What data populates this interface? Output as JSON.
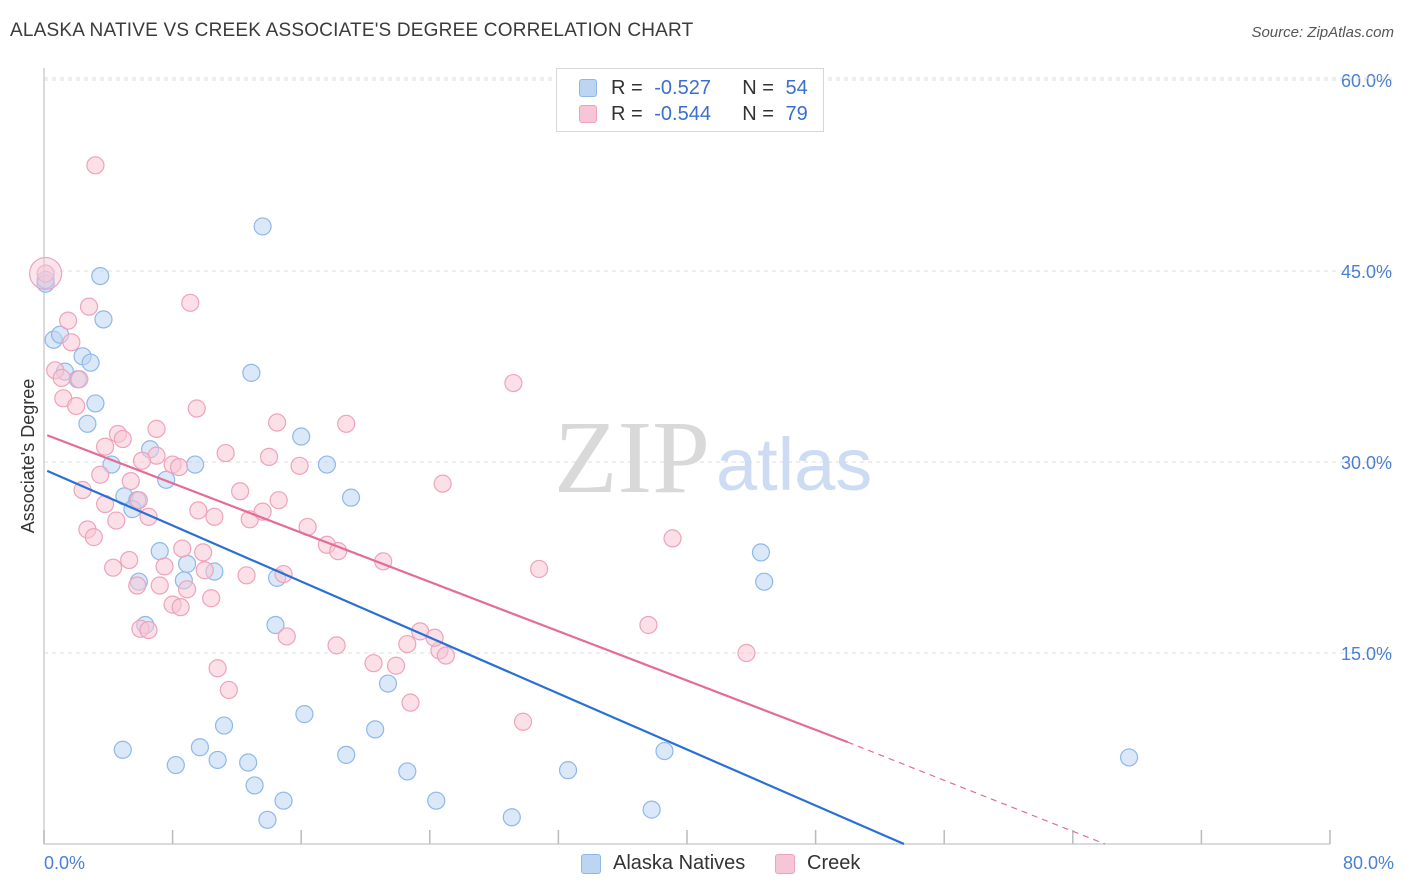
{
  "title": "ALASKA NATIVE VS CREEK ASSOCIATE'S DEGREE CORRELATION CHART",
  "source": "Source: ZipAtlas.com",
  "watermark": {
    "zip": "ZIP",
    "atlas": "atlas"
  },
  "colors": {
    "blue": "#8fb8ea",
    "blue_fill": "#bcd5f3",
    "blue_line": "#2a6fd6",
    "pink": "#eea3bb",
    "pink_fill": "#f7c6d6",
    "pink_line": "#e36d96",
    "tick": "#4a7fd4",
    "grid": "#dddddd"
  },
  "legend": {
    "rows": [
      {
        "r_label": "R = ",
        "r_value": "-0.527",
        "n_label": "N = ",
        "n_value": "54"
      },
      {
        "r_label": "R = ",
        "r_value": "-0.544",
        "n_label": "N = ",
        "n_value": "79"
      }
    ]
  },
  "bottom_legend": [
    "Alaska Natives",
    "Creek"
  ],
  "chart_data": {
    "type": "scatter",
    "title": "ALASKA NATIVE VS CREEK ASSOCIATE'S DEGREE CORRELATION CHART",
    "xlabel": "",
    "ylabel": "Associate's Degree",
    "xlim": [
      0,
      80
    ],
    "ylim": [
      0,
      60
    ],
    "x_tick_labels": [
      "0.0%",
      "80.0%"
    ],
    "y_ticks": [
      15,
      30,
      45,
      60
    ],
    "y_tick_labels": [
      "15.0%",
      "30.0%",
      "45.0%",
      "60.0%"
    ],
    "grid": true,
    "legend_position": "top-center",
    "series": [
      {
        "name": "Alaska Natives",
        "r": -0.527,
        "n": 54,
        "trend": {
          "x": [
            0.2,
            53.5
          ],
          "y": [
            29.3,
            0
          ]
        },
        "points": [
          [
            0.1,
            44.0
          ],
          [
            3.5,
            44.6
          ],
          [
            13.6,
            48.5
          ],
          [
            0.6,
            39.6
          ],
          [
            1.0,
            40.0
          ],
          [
            2.4,
            38.3
          ],
          [
            2.9,
            37.8
          ],
          [
            3.7,
            41.2
          ],
          [
            1.3,
            37.1
          ],
          [
            2.1,
            36.5
          ],
          [
            3.2,
            34.6
          ],
          [
            2.7,
            33.0
          ],
          [
            12.9,
            37.0
          ],
          [
            16.0,
            32.0
          ],
          [
            6.6,
            31.0
          ],
          [
            4.2,
            29.8
          ],
          [
            9.4,
            29.8
          ],
          [
            17.6,
            29.8
          ],
          [
            5.0,
            27.3
          ],
          [
            5.8,
            27.0
          ],
          [
            7.6,
            28.6
          ],
          [
            5.5,
            26.3
          ],
          [
            19.1,
            27.2
          ],
          [
            7.2,
            23.0
          ],
          [
            8.9,
            22.0
          ],
          [
            10.6,
            21.4
          ],
          [
            8.7,
            20.7
          ],
          [
            14.5,
            20.9
          ],
          [
            5.9,
            20.6
          ],
          [
            6.3,
            17.2
          ],
          [
            14.4,
            17.2
          ],
          [
            44.6,
            22.9
          ],
          [
            44.8,
            20.6
          ],
          [
            21.4,
            12.6
          ],
          [
            16.2,
            10.2
          ],
          [
            11.2,
            9.3
          ],
          [
            20.6,
            9.0
          ],
          [
            4.9,
            7.4
          ],
          [
            9.7,
            7.6
          ],
          [
            38.6,
            7.3
          ],
          [
            18.8,
            7.0
          ],
          [
            8.2,
            6.2
          ],
          [
            10.8,
            6.6
          ],
          [
            12.7,
            6.4
          ],
          [
            22.6,
            5.7
          ],
          [
            32.6,
            5.8
          ],
          [
            13.1,
            4.6
          ],
          [
            14.9,
            3.4
          ],
          [
            24.4,
            3.4
          ],
          [
            37.8,
            2.7
          ],
          [
            13.9,
            1.9
          ],
          [
            29.1,
            2.1
          ],
          [
            67.5,
            6.8
          ],
          [
            0.1,
            44.3
          ]
        ]
      },
      {
        "name": "Creek",
        "r": -0.544,
        "n": 79,
        "trend": {
          "x": [
            0.2,
            50.0
          ],
          "y": [
            32.1,
            8.0
          ]
        },
        "trend_dashed": {
          "x": [
            50.0,
            66.0
          ],
          "y": [
            8.0,
            0
          ]
        },
        "points": [
          [
            0.1,
            44.8
          ],
          [
            3.2,
            53.3
          ],
          [
            9.1,
            42.5
          ],
          [
            2.8,
            42.2
          ],
          [
            1.5,
            41.1
          ],
          [
            1.7,
            39.4
          ],
          [
            0.7,
            37.2
          ],
          [
            1.1,
            36.6
          ],
          [
            2.2,
            36.5
          ],
          [
            1.2,
            35.0
          ],
          [
            2.0,
            34.4
          ],
          [
            29.2,
            36.2
          ],
          [
            9.5,
            34.2
          ],
          [
            14.5,
            33.1
          ],
          [
            18.8,
            33.0
          ],
          [
            7.0,
            32.6
          ],
          [
            4.6,
            32.2
          ],
          [
            4.9,
            31.8
          ],
          [
            3.8,
            31.2
          ],
          [
            7.0,
            30.5
          ],
          [
            11.3,
            30.7
          ],
          [
            14.0,
            30.4
          ],
          [
            6.1,
            30.1
          ],
          [
            8.0,
            29.8
          ],
          [
            8.4,
            29.6
          ],
          [
            15.9,
            29.7
          ],
          [
            3.5,
            29.0
          ],
          [
            5.4,
            28.5
          ],
          [
            24.8,
            28.3
          ],
          [
            2.4,
            27.8
          ],
          [
            12.2,
            27.7
          ],
          [
            14.6,
            27.0
          ],
          [
            5.9,
            27.0
          ],
          [
            3.8,
            26.7
          ],
          [
            9.6,
            26.2
          ],
          [
            10.6,
            25.7
          ],
          [
            6.5,
            25.7
          ],
          [
            4.5,
            25.4
          ],
          [
            12.8,
            25.5
          ],
          [
            13.6,
            26.1
          ],
          [
            16.4,
            24.9
          ],
          [
            2.7,
            24.7
          ],
          [
            3.1,
            24.1
          ],
          [
            39.1,
            24.0
          ],
          [
            17.6,
            23.5
          ],
          [
            8.6,
            23.2
          ],
          [
            18.3,
            23.0
          ],
          [
            9.9,
            22.9
          ],
          [
            21.1,
            22.2
          ],
          [
            30.8,
            21.6
          ],
          [
            4.3,
            21.7
          ],
          [
            7.5,
            21.8
          ],
          [
            12.6,
            21.1
          ],
          [
            14.9,
            21.2
          ],
          [
            5.8,
            20.3
          ],
          [
            8.9,
            20.0
          ],
          [
            10.4,
            19.3
          ],
          [
            8.0,
            18.8
          ],
          [
            8.5,
            18.6
          ],
          [
            6.0,
            16.9
          ],
          [
            6.5,
            16.8
          ],
          [
            15.1,
            16.3
          ],
          [
            23.4,
            16.7
          ],
          [
            37.6,
            17.2
          ],
          [
            18.2,
            15.6
          ],
          [
            22.6,
            15.7
          ],
          [
            24.6,
            15.2
          ],
          [
            25.0,
            14.8
          ],
          [
            43.7,
            15.0
          ],
          [
            20.5,
            14.2
          ],
          [
            21.9,
            14.0
          ],
          [
            10.8,
            13.8
          ],
          [
            11.5,
            12.1
          ],
          [
            22.8,
            11.1
          ],
          [
            29.8,
            9.6
          ],
          [
            5.3,
            22.3
          ],
          [
            7.2,
            20.3
          ],
          [
            10.0,
            21.5
          ],
          [
            24.3,
            16.2
          ]
        ]
      }
    ]
  }
}
